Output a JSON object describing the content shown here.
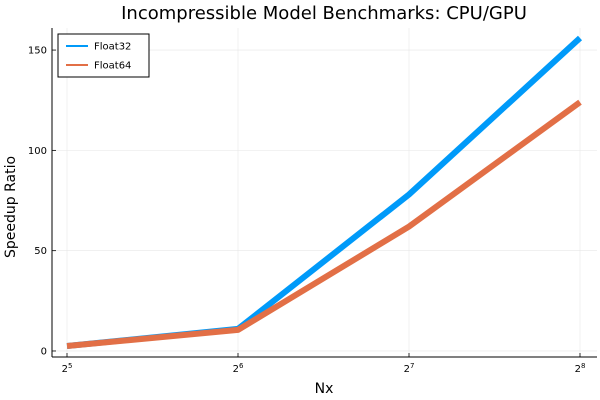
{
  "chart_data": {
    "type": "line",
    "title": "Incompressible Model Benchmarks: CPU/GPU",
    "xlabel": "Nx",
    "ylabel": "Speedup Ratio",
    "x_scale": "log2",
    "x": [
      32,
      64,
      128,
      256
    ],
    "x_tick_labels": [
      {
        "base": "2",
        "exp": "5"
      },
      {
        "base": "2",
        "exp": "6"
      },
      {
        "base": "2",
        "exp": "7"
      },
      {
        "base": "2",
        "exp": "8"
      }
    ],
    "y_ticks": [
      0,
      50,
      100,
      150
    ],
    "ylim": [
      -3,
      161
    ],
    "grid": true,
    "legend_position": "top-left",
    "series": [
      {
        "name": "Float32",
        "color": "#009af9",
        "values": [
          2.5,
          11,
          78,
          156
        ]
      },
      {
        "name": "Float64",
        "color": "#e26f46",
        "values": [
          2.5,
          10.5,
          62,
          124
        ]
      }
    ]
  }
}
